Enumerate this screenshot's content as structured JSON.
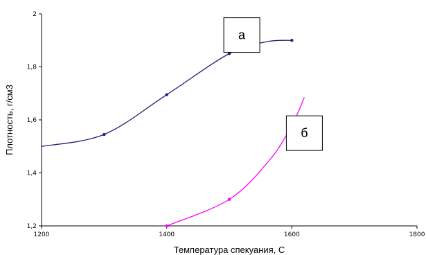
{
  "chart_data": {
    "type": "line",
    "xlabel": "Температура спекуания, С",
    "ylabel": "Плотность, г/см3",
    "xlim": [
      1200,
      1800
    ],
    "ylim": [
      1.2,
      2.0
    ],
    "x_ticks": [
      1200,
      1400,
      1600,
      1800
    ],
    "x_tick_labels": [
      "1200",
      "1400",
      "1600",
      "1800"
    ],
    "y_ticks": [
      1.2,
      1.4,
      1.6,
      1.8,
      2.0
    ],
    "y_tick_labels": [
      "1,2",
      "1,4",
      "1,6",
      "1,8",
      "2"
    ],
    "grid": false,
    "series": [
      {
        "name": "а",
        "color": "#1f1f7a",
        "points": [
          [
            1200,
            1.5
          ],
          [
            1300,
            1.545
          ],
          [
            1400,
            1.695
          ],
          [
            1500,
            1.85
          ],
          [
            1560,
            1.895
          ],
          [
            1600,
            1.9
          ]
        ],
        "markers": [
          [
            1300,
            1.545
          ],
          [
            1400,
            1.695
          ],
          [
            1500,
            1.85
          ],
          [
            1600,
            1.9
          ]
        ]
      },
      {
        "name": "б",
        "color": "#ff00ff",
        "points": [
          [
            1400,
            1.2
          ],
          [
            1500,
            1.3
          ],
          [
            1565,
            1.45
          ],
          [
            1600,
            1.58
          ],
          [
            1620,
            1.685
          ]
        ],
        "markers": [
          [
            1400,
            1.2
          ],
          [
            1500,
            1.3
          ],
          [
            1600,
            1.58
          ]
        ]
      }
    ],
    "annotations": [
      {
        "text": "а",
        "series": 0,
        "x": 1520,
        "y": 1.92
      },
      {
        "text": "б",
        "series": 1,
        "x": 1620,
        "y": 1.55
      }
    ]
  }
}
